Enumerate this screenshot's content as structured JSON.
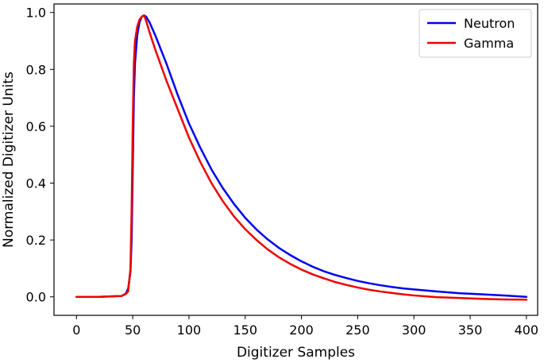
{
  "chart_data": {
    "type": "line",
    "title": "",
    "xlabel": "Digitizer Samples",
    "ylabel": "Normalized Digitizer Units",
    "xlim": [
      -20,
      410
    ],
    "ylim": [
      -0.065,
      1.03
    ],
    "xticks": [
      0,
      50,
      100,
      150,
      200,
      250,
      300,
      350,
      400
    ],
    "yticks": [
      0.0,
      0.2,
      0.4,
      0.6,
      0.8,
      1.0
    ],
    "xtick_labels": [
      "0",
      "50",
      "100",
      "150",
      "200",
      "250",
      "300",
      "350",
      "400"
    ],
    "ytick_labels": [
      "0.0",
      "0.2",
      "0.4",
      "0.6",
      "0.8",
      "1.0"
    ],
    "grid": false,
    "legend": "top-right",
    "series": [
      {
        "name": "Neutron",
        "color": "#0000ee",
        "x": [
          0,
          20,
          40,
          44,
          46,
          48,
          49,
          50,
          51,
          52,
          54,
          56,
          58,
          60,
          62,
          65,
          70,
          80,
          90,
          100,
          110,
          120,
          130,
          140,
          150,
          160,
          170,
          180,
          190,
          200,
          210,
          220,
          230,
          240,
          250,
          260,
          270,
          280,
          290,
          300,
          320,
          340,
          360,
          380,
          400
        ],
        "y": [
          0.0,
          0.0,
          0.003,
          0.012,
          0.03,
          0.09,
          0.2,
          0.45,
          0.7,
          0.82,
          0.92,
          0.965,
          0.985,
          0.99,
          0.985,
          0.965,
          0.92,
          0.82,
          0.71,
          0.61,
          0.525,
          0.448,
          0.383,
          0.327,
          0.278,
          0.237,
          0.202,
          0.172,
          0.147,
          0.125,
          0.106,
          0.09,
          0.077,
          0.066,
          0.056,
          0.048,
          0.041,
          0.035,
          0.03,
          0.026,
          0.019,
          0.013,
          0.009,
          0.005,
          0.0
        ]
      },
      {
        "name": "Gamma",
        "color": "#ee0000",
        "x": [
          0,
          20,
          40,
          44,
          46,
          48,
          49,
          50,
          51,
          52,
          54,
          56,
          58,
          60,
          62,
          65,
          70,
          80,
          90,
          100,
          110,
          120,
          130,
          140,
          150,
          160,
          170,
          180,
          190,
          200,
          210,
          220,
          230,
          240,
          250,
          260,
          270,
          280,
          290,
          300,
          320,
          340,
          360,
          380,
          400
        ],
        "y": [
          0.0,
          0.0,
          0.003,
          0.01,
          0.02,
          0.1,
          0.3,
          0.6,
          0.82,
          0.9,
          0.95,
          0.975,
          0.985,
          0.99,
          0.97,
          0.93,
          0.87,
          0.76,
          0.66,
          0.56,
          0.475,
          0.4,
          0.337,
          0.283,
          0.238,
          0.2,
          0.167,
          0.139,
          0.116,
          0.096,
          0.079,
          0.065,
          0.052,
          0.042,
          0.033,
          0.025,
          0.019,
          0.014,
          0.009,
          0.005,
          -0.001,
          -0.004,
          -0.007,
          -0.009,
          -0.01
        ]
      }
    ]
  }
}
